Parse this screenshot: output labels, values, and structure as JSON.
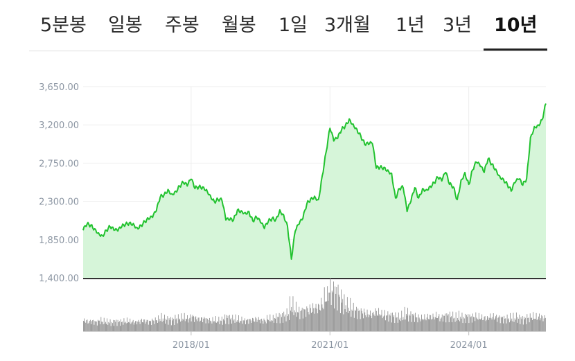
{
  "tabs": [
    {
      "label": "5분봉"
    },
    {
      "label": "일봉"
    },
    {
      "label": "주봉"
    },
    {
      "label": "월봉"
    },
    {
      "label": "1일"
    },
    {
      "label": "3개월"
    },
    {
      "label": "1년"
    },
    {
      "label": "3년"
    },
    {
      "label": "10년",
      "active": true
    }
  ],
  "chart_data": {
    "type": "area",
    "title": "",
    "xlabel": "",
    "ylabel": "",
    "y_tick_labels": [
      "3,650.00",
      "3,200.00",
      "2,750.00",
      "2,300.00",
      "1,850.00",
      "1,400.00"
    ],
    "y_ticks": [
      3650,
      3200,
      2750,
      2300,
      1850,
      1400
    ],
    "ylim": [
      1400,
      3650
    ],
    "x_tick_labels": [
      "2018/01",
      "2021/01",
      "2024/01"
    ],
    "x_ticks": [
      "2018-01",
      "2021-01",
      "2024-01"
    ],
    "xlim": [
      "2015-09",
      "2025-09"
    ],
    "grid": true,
    "colors": {
      "line": "#22c22f",
      "fill": "#d6f5d9",
      "volume": "#8a8a8a",
      "grid": "#eeeeee"
    },
    "series": [
      {
        "x": [
          "2015-09",
          "2015-10",
          "2015-11",
          "2015-12",
          "2016-01",
          "2016-02",
          "2016-03",
          "2016-04",
          "2016-05",
          "2016-06",
          "2016-07",
          "2016-08",
          "2016-09",
          "2016-10",
          "2016-11",
          "2016-12",
          "2017-01",
          "2017-02",
          "2017-03",
          "2017-04",
          "2017-05",
          "2017-06",
          "2017-07",
          "2017-08",
          "2017-09",
          "2017-10",
          "2017-11",
          "2017-12",
          "2018-01",
          "2018-02",
          "2018-03",
          "2018-04",
          "2018-05",
          "2018-06",
          "2018-07",
          "2018-08",
          "2018-09",
          "2018-10",
          "2018-11",
          "2018-12",
          "2019-01",
          "2019-02",
          "2019-03",
          "2019-04",
          "2019-05",
          "2019-06",
          "2019-07",
          "2019-08",
          "2019-09",
          "2019-10",
          "2019-11",
          "2019-12",
          "2020-01",
          "2020-02",
          "2020-03",
          "2020-04",
          "2020-05",
          "2020-06",
          "2020-07",
          "2020-08",
          "2020-09",
          "2020-10",
          "2020-11",
          "2020-12",
          "2021-01",
          "2021-02",
          "2021-03",
          "2021-04",
          "2021-05",
          "2021-06",
          "2021-07",
          "2021-08",
          "2021-09",
          "2021-10",
          "2021-11",
          "2021-12",
          "2022-01",
          "2022-02",
          "2022-03",
          "2022-04",
          "2022-05",
          "2022-06",
          "2022-07",
          "2022-08",
          "2022-09",
          "2022-10",
          "2022-11",
          "2022-12",
          "2023-01",
          "2023-02",
          "2023-03",
          "2023-04",
          "2023-05",
          "2023-06",
          "2023-07",
          "2023-08",
          "2023-09",
          "2023-10",
          "2023-11",
          "2023-12",
          "2024-01",
          "2024-02",
          "2024-03",
          "2024-04",
          "2024-05",
          "2024-06",
          "2024-07",
          "2024-08",
          "2024-09",
          "2024-10",
          "2024-11",
          "2024-12",
          "2025-01",
          "2025-02",
          "2025-03",
          "2025-04",
          "2025-05",
          "2025-06",
          "2025-07",
          "2025-08",
          "2025-09"
        ],
        "values": [
          1960,
          2030,
          2020,
          1980,
          1930,
          1900,
          1960,
          2000,
          1960,
          1950,
          2000,
          2030,
          2050,
          2040,
          1990,
          2020,
          2060,
          2090,
          2110,
          2190,
          2350,
          2380,
          2440,
          2390,
          2420,
          2480,
          2520,
          2480,
          2560,
          2450,
          2470,
          2470,
          2440,
          2370,
          2300,
          2320,
          2310,
          2080,
          2080,
          2080,
          2200,
          2190,
          2170,
          2180,
          2070,
          2110,
          2050,
          1980,
          2060,
          2100,
          2090,
          2200,
          2140,
          2010,
          1620,
          1950,
          2030,
          2100,
          2270,
          2330,
          2360,
          2320,
          2600,
          2880,
          3160,
          3010,
          3040,
          3140,
          3190,
          3270,
          3210,
          3150,
          3070,
          2970,
          2970,
          2980,
          2690,
          2700,
          2700,
          2670,
          2630,
          2340,
          2450,
          2460,
          2180,
          2300,
          2460,
          2340,
          2450,
          2440,
          2480,
          2520,
          2580,
          2540,
          2640,
          2500,
          2470,
          2320,
          2550,
          2640,
          2500,
          2670,
          2760,
          2710,
          2640,
          2800,
          2740,
          2680,
          2600,
          2560,
          2500,
          2420,
          2520,
          2560,
          2490,
          2570,
          3050,
          3180,
          3200,
          3260,
          3450
        ]
      }
    ],
    "volume": {
      "ylim": [
        0,
        100
      ],
      "values": [
        22,
        20,
        21,
        19,
        22,
        20,
        19,
        18,
        20,
        19,
        20,
        21,
        20,
        19,
        20,
        22,
        21,
        20,
        22,
        24,
        27,
        25,
        24,
        23,
        26,
        27,
        28,
        26,
        30,
        27,
        25,
        26,
        24,
        22,
        23,
        22,
        23,
        28,
        26,
        25,
        24,
        23,
        22,
        23,
        24,
        25,
        23,
        22,
        26,
        25,
        28,
        30,
        32,
        35,
        52,
        45,
        40,
        42,
        44,
        46,
        48,
        50,
        56,
        70,
        85,
        82,
        78,
        65,
        55,
        50,
        45,
        42,
        40,
        38,
        36,
        35,
        40,
        38,
        34,
        33,
        32,
        30,
        28,
        30,
        36,
        33,
        32,
        28,
        27,
        28,
        30,
        30,
        32,
        28,
        31,
        32,
        30,
        28,
        30,
        28,
        30,
        29,
        30,
        29,
        28,
        27,
        30,
        30,
        28,
        27,
        26,
        27,
        27,
        28,
        26,
        25,
        28,
        30,
        29,
        30,
        28
      ]
    }
  }
}
